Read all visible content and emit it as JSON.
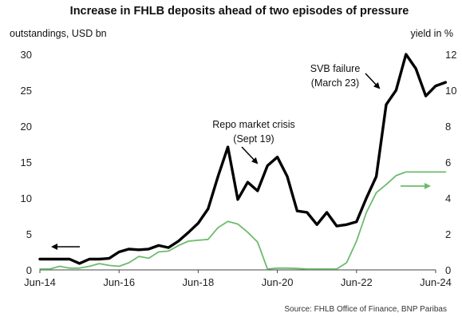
{
  "chart_data": {
    "type": "line",
    "title": "Increase in FHLB deposits ahead of two episodes of pressure",
    "left_axis_label": "outstandings, USD bn",
    "right_axis_label": "yield in %",
    "x_ticks": [
      "Jun-14",
      "Jun-16",
      "Jun-18",
      "Jun-20",
      "Jun-22",
      "Jun-24"
    ],
    "y_left_ticks": [
      "0",
      "5",
      "10",
      "15",
      "20",
      "25",
      "30"
    ],
    "y_right_ticks": [
      "0",
      "2",
      "4",
      "6",
      "8",
      "10",
      "12"
    ],
    "y_left_range": [
      0,
      30
    ],
    "y_right_range": [
      0,
      12
    ],
    "x_range": [
      "2014-06",
      "2024-06"
    ],
    "grid": false,
    "series": [
      {
        "axis": "left",
        "color": "#000000",
        "points": [
          [
            "2014-06",
            1.5
          ],
          [
            "2014-09",
            1.5
          ],
          [
            "2014-12",
            1.5
          ],
          [
            "2015-03",
            1.5
          ],
          [
            "2015-06",
            0.9
          ],
          [
            "2015-09",
            1.5
          ],
          [
            "2015-12",
            1.5
          ],
          [
            "2016-03",
            1.6
          ],
          [
            "2016-06",
            2.5
          ],
          [
            "2016-09",
            2.9
          ],
          [
            "2016-12",
            2.8
          ],
          [
            "2017-03",
            2.9
          ],
          [
            "2017-06",
            3.4
          ],
          [
            "2017-09",
            3.1
          ],
          [
            "2017-12",
            4.0
          ],
          [
            "2018-03",
            5.2
          ],
          [
            "2018-06",
            6.5
          ],
          [
            "2018-09",
            8.5
          ],
          [
            "2018-12",
            13.0
          ],
          [
            "2019-03",
            17.1
          ],
          [
            "2019-06",
            9.8
          ],
          [
            "2019-09",
            12.2
          ],
          [
            "2019-12",
            11.0
          ],
          [
            "2020-03",
            14.5
          ],
          [
            "2020-06",
            15.7
          ],
          [
            "2020-09",
            13.0
          ],
          [
            "2020-12",
            8.2
          ],
          [
            "2021-03",
            8.0
          ],
          [
            "2021-06",
            6.3
          ],
          [
            "2021-09",
            8.0
          ],
          [
            "2021-12",
            6.1
          ],
          [
            "2022-03",
            6.3
          ],
          [
            "2022-06",
            6.7
          ],
          [
            "2022-09",
            10.0
          ],
          [
            "2022-12",
            13.0
          ],
          [
            "2023-03",
            23.0
          ],
          [
            "2023-06",
            25.0
          ],
          [
            "2023-09",
            30.0
          ],
          [
            "2023-12",
            28.0
          ],
          [
            "2024-03",
            24.2
          ],
          [
            "2024-06",
            25.6
          ],
          [
            "2024-09",
            26.1
          ]
        ]
      },
      {
        "axis": "right",
        "color": "#6dbb6d",
        "points": [
          [
            "2014-06",
            0.05
          ],
          [
            "2014-09",
            0.05
          ],
          [
            "2014-12",
            0.2
          ],
          [
            "2015-03",
            0.1
          ],
          [
            "2015-06",
            0.1
          ],
          [
            "2015-09",
            0.2
          ],
          [
            "2015-12",
            0.35
          ],
          [
            "2016-03",
            0.25
          ],
          [
            "2016-06",
            0.2
          ],
          [
            "2016-09",
            0.4
          ],
          [
            "2016-12",
            0.75
          ],
          [
            "2017-03",
            0.65
          ],
          [
            "2017-06",
            1.0
          ],
          [
            "2017-09",
            1.05
          ],
          [
            "2017-12",
            1.35
          ],
          [
            "2018-03",
            1.6
          ],
          [
            "2018-06",
            1.65
          ],
          [
            "2018-09",
            1.7
          ],
          [
            "2018-12",
            2.35
          ],
          [
            "2019-03",
            2.7
          ],
          [
            "2019-06",
            2.55
          ],
          [
            "2019-09",
            2.1
          ],
          [
            "2019-12",
            1.55
          ],
          [
            "2020-03",
            0.05
          ],
          [
            "2020-06",
            0.1
          ],
          [
            "2020-09",
            0.1
          ],
          [
            "2020-12",
            0.08
          ],
          [
            "2021-03",
            0.05
          ],
          [
            "2021-06",
            0.05
          ],
          [
            "2021-09",
            0.05
          ],
          [
            "2021-12",
            0.05
          ],
          [
            "2022-03",
            0.4
          ],
          [
            "2022-06",
            1.6
          ],
          [
            "2022-09",
            3.2
          ],
          [
            "2022-12",
            4.3
          ],
          [
            "2023-03",
            4.75
          ],
          [
            "2023-06",
            5.25
          ],
          [
            "2023-09",
            5.45
          ],
          [
            "2023-12",
            5.45
          ],
          [
            "2024-03",
            5.45
          ],
          [
            "2024-06",
            5.45
          ],
          [
            "2024-09",
            5.45
          ]
        ]
      }
    ],
    "annotations": [
      {
        "lines": [
          "Repo market crisis",
          "(Sept 19)"
        ],
        "target": [
          "2019-09",
          14.5
        ]
      },
      {
        "lines": [
          "SVB failure",
          "(March 23)"
        ],
        "target": [
          "2023-03",
          23.0
        ]
      }
    ],
    "axis_arrows": [
      {
        "direction": "left",
        "series_axis": "left"
      },
      {
        "direction": "right",
        "series_axis": "right"
      }
    ],
    "source": "Source: FHLB Office of Finance, BNP Paribas"
  }
}
